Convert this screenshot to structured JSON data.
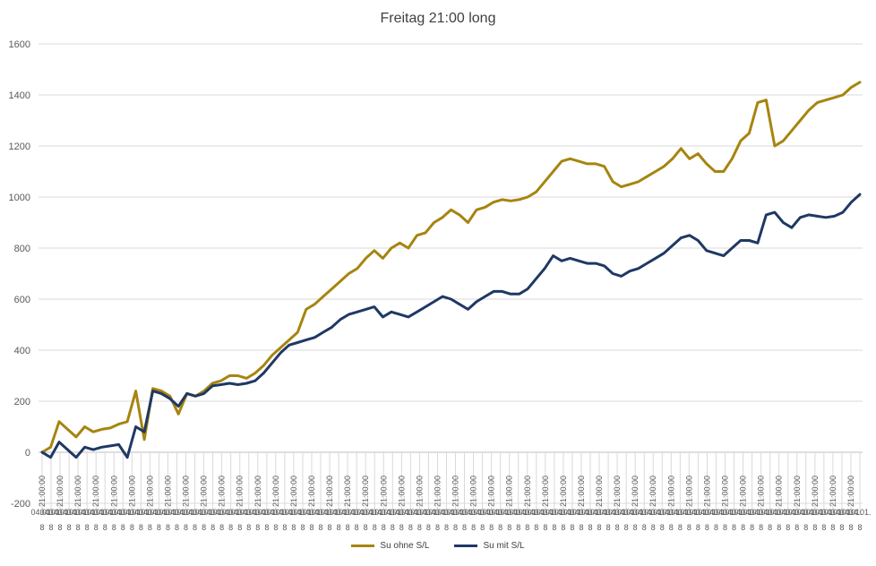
{
  "chart_data": {
    "type": "line",
    "title": "Freitag 21:00 long",
    "xlabel": "",
    "ylabel": "",
    "ylim": [
      -200,
      1600
    ],
    "yticks": [
      -200,
      0,
      200,
      400,
      600,
      800,
      1000,
      1200,
      1400,
      1600
    ],
    "grid": true,
    "legend_position": "bottom",
    "x_axis_label_rows": [
      "21:00:00",
      "04.01.",
      "8"
    ],
    "x": [
      0,
      5,
      10,
      15,
      20,
      25,
      30,
      35,
      40,
      45,
      50,
      55,
      60,
      65,
      70,
      75,
      80,
      85,
      90,
      95,
      100,
      105,
      110,
      115,
      120,
      125,
      130,
      135,
      140,
      145,
      150,
      155,
      160,
      165,
      170,
      175,
      180,
      185,
      190,
      195,
      200,
      205,
      210,
      215,
      220,
      225,
      230,
      235,
      240,
      245,
      250,
      255,
      260,
      265,
      270,
      275,
      280,
      285,
      290,
      295,
      300,
      305,
      310,
      315,
      320,
      325,
      330,
      335,
      340,
      345,
      350,
      355,
      360,
      365,
      370,
      375,
      380,
      385,
      390,
      395,
      400,
      405,
      410,
      415,
      420,
      425,
      430,
      435,
      440,
      445,
      450,
      455,
      460,
      465,
      470,
      475,
      480
    ],
    "series": [
      {
        "name": "Su ohne S/L",
        "color": "#a6850f",
        "values": [
          0,
          20,
          120,
          90,
          60,
          100,
          80,
          90,
          95,
          110,
          120,
          240,
          50,
          250,
          240,
          220,
          150,
          230,
          220,
          240,
          270,
          280,
          300,
          300,
          290,
          310,
          340,
          380,
          410,
          440,
          470,
          560,
          580,
          610,
          640,
          670,
          700,
          720,
          760,
          790,
          760,
          800,
          820,
          800,
          850,
          860,
          900,
          920,
          950,
          930,
          900,
          950,
          960,
          980,
          990,
          985,
          990,
          1000,
          1020,
          1060,
          1100,
          1140,
          1150,
          1140,
          1130,
          1130,
          1120,
          1060,
          1040,
          1050,
          1060,
          1080,
          1100,
          1120,
          1150,
          1190,
          1150,
          1170,
          1130,
          1100,
          1100,
          1150,
          1220,
          1250,
          1370,
          1380,
          1200,
          1220,
          1260,
          1300,
          1340,
          1370,
          1380,
          1390,
          1400,
          1430,
          1450
        ]
      },
      {
        "name": "Su mit S/L",
        "color": "#1f3864",
        "values": [
          0,
          -20,
          40,
          10,
          -20,
          20,
          10,
          20,
          25,
          30,
          -20,
          100,
          80,
          240,
          230,
          210,
          180,
          230,
          220,
          230,
          260,
          265,
          270,
          265,
          270,
          280,
          310,
          350,
          390,
          420,
          430,
          440,
          450,
          470,
          490,
          520,
          540,
          550,
          560,
          570,
          530,
          550,
          540,
          530,
          550,
          570,
          590,
          610,
          600,
          580,
          560,
          590,
          610,
          630,
          630,
          620,
          620,
          640,
          680,
          720,
          770,
          750,
          760,
          750,
          740,
          740,
          730,
          700,
          690,
          710,
          720,
          740,
          760,
          780,
          810,
          840,
          850,
          830,
          790,
          780,
          770,
          800,
          830,
          830,
          820,
          930,
          940,
          900,
          880,
          920,
          930,
          925,
          920,
          925,
          940,
          980,
          1010
        ]
      }
    ]
  }
}
